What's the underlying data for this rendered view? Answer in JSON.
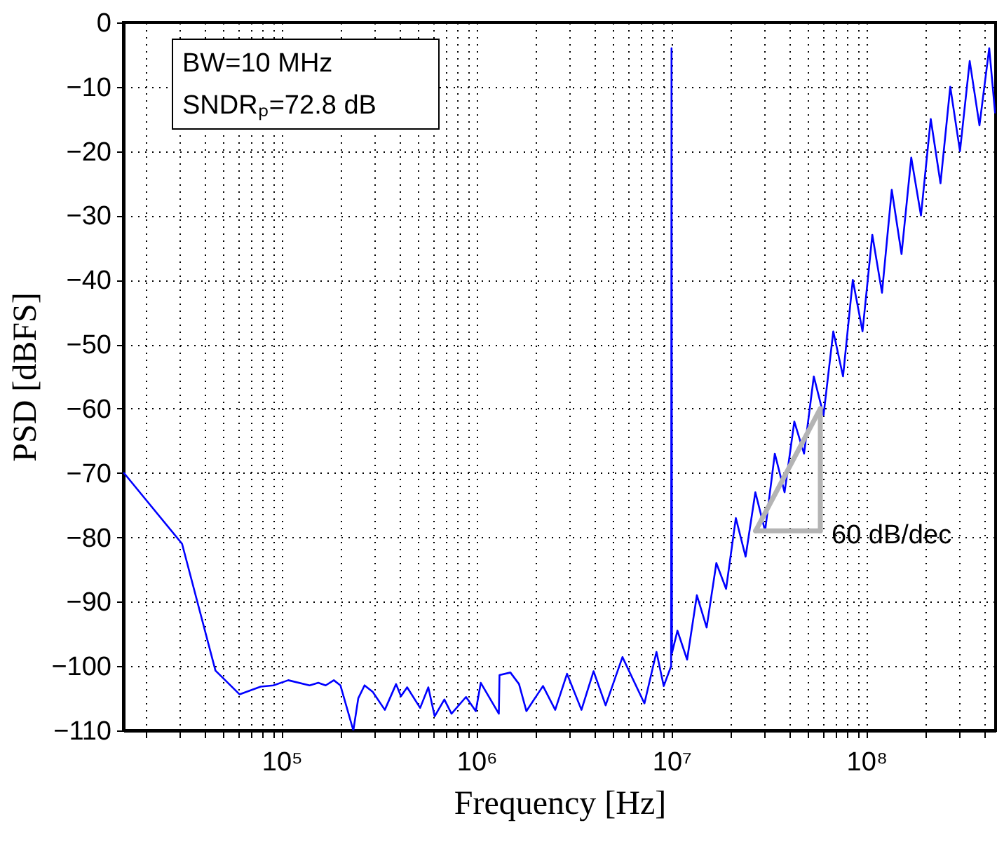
{
  "chart_data": {
    "type": "line",
    "xlabel": "Frequency [Hz]",
    "ylabel": "PSD [dBFS]",
    "log": "x",
    "grid": true,
    "line_style": "solid",
    "xlim": [
      15400,
      460000000
    ],
    "ylim": [
      -110,
      0
    ],
    "yticks": [
      0,
      -10,
      -20,
      -30,
      -40,
      -50,
      -60,
      -70,
      -80,
      -90,
      -100,
      -110
    ],
    "xticks": [
      {
        "value": 20000,
        "label": null
      },
      {
        "value": 30000,
        "label": null
      },
      {
        "value": 40000,
        "label": null
      },
      {
        "value": 50000,
        "label": null
      },
      {
        "value": 60000,
        "label": null
      },
      {
        "value": 70000,
        "label": null
      },
      {
        "value": 80000,
        "label": null
      },
      {
        "value": 90000,
        "label": null
      },
      {
        "value": 100000,
        "label": "10⁵"
      },
      {
        "value": 200000,
        "label": null
      },
      {
        "value": 300000,
        "label": null
      },
      {
        "value": 400000,
        "label": null
      },
      {
        "value": 500000,
        "label": null
      },
      {
        "value": 600000,
        "label": null
      },
      {
        "value": 700000,
        "label": null
      },
      {
        "value": 800000,
        "label": null
      },
      {
        "value": 900000,
        "label": null
      },
      {
        "value": 1000000,
        "label": "10⁶"
      },
      {
        "value": 2000000,
        "label": null
      },
      {
        "value": 3000000,
        "label": null
      },
      {
        "value": 4000000,
        "label": null
      },
      {
        "value": 5000000,
        "label": null
      },
      {
        "value": 6000000,
        "label": null
      },
      {
        "value": 7000000,
        "label": null
      },
      {
        "value": 8000000,
        "label": null
      },
      {
        "value": 9000000,
        "label": null
      },
      {
        "value": 10000000,
        "label": "10⁷"
      },
      {
        "value": 20000000,
        "label": null
      },
      {
        "value": 30000000,
        "label": null
      },
      {
        "value": 40000000,
        "label": null
      },
      {
        "value": 50000000,
        "label": null
      },
      {
        "value": 60000000,
        "label": null
      },
      {
        "value": 70000000,
        "label": null
      },
      {
        "value": 80000000,
        "label": null
      },
      {
        "value": 90000000,
        "label": null
      },
      {
        "value": 100000000,
        "label": "10⁸"
      },
      {
        "value": 200000000,
        "label": null
      },
      {
        "value": 300000000,
        "label": null
      },
      {
        "value": 400000000,
        "label": null
      }
    ],
    "annotations": [
      "BW=10 MHz",
      "SNDRₚ=72.8 dB",
      "60 dB/dec"
    ],
    "series": [
      {
        "color": "#0000ff",
        "x": [
          15500,
          30800,
          45700,
          60800,
          78000,
          90600,
          108000,
          139000,
          154000,
          168000,
          185000,
          200000,
          233000,
          247000,
          266000,
          293000,
          338000,
          386000,
          409000,
          440000,
          513000,
          565000,
          609000,
          683000,
          743000,
          882000,
          990000,
          1050000,
          1300000,
          1310000,
          1490000,
          1650000,
          1800000,
          2190000,
          2530000,
          2910000,
          3450000,
          3980000,
          4590000,
          5600000,
          7260000,
          8370000,
          9120000,
          9950000,
          10000000,
          10050000,
          10720000,
          12020000,
          13490000,
          15140000,
          16980000,
          19050000,
          21380000,
          23990000,
          26920000,
          30200000,
          33880000,
          38020000,
          42660000,
          47860000,
          53700000,
          60260000,
          67610000,
          75860000,
          85110000,
          95500000,
          107200000,
          120200000,
          134900000,
          151400000,
          169800000,
          190500000,
          213800000,
          239900000,
          269200000,
          302000000,
          338800000,
          380200000,
          426600000,
          457100000
        ],
        "values": [
          -70,
          -81,
          -100.7,
          -104.4,
          -103.2,
          -103,
          -102.2,
          -103,
          -102.6,
          -103,
          -102.2,
          -103,
          -110,
          -105,
          -103,
          -104,
          -106.8,
          -102.8,
          -104.7,
          -103.3,
          -106.5,
          -103.3,
          -107.8,
          -105.2,
          -107.4,
          -104.8,
          -107,
          -102.6,
          -107.4,
          -101.4,
          -101,
          -102.8,
          -107,
          -103.1,
          -106.8,
          -101.2,
          -106.8,
          -100.8,
          -106.1,
          -98.6,
          -105.8,
          -97.8,
          -103.1,
          -100,
          -4,
          -98,
          -94.5,
          -99,
          -89,
          -94,
          -84,
          -88,
          -77,
          -83,
          -73,
          -79,
          -67,
          -73,
          -62,
          -67,
          -55,
          -61,
          -48,
          -55,
          -40,
          -48,
          -33,
          -42,
          -26,
          -36,
          -21,
          -30,
          -15,
          -25,
          -10,
          -20,
          -6,
          -16,
          -4,
          -14
        ]
      },
      {
        "color": "#b4b4b4",
        "x": [
          27000000,
          58000000
        ],
        "values": [
          -79,
          -60
        ]
      },
      {
        "color": "#b4b4b4",
        "x": [
          27000000,
          58000000
        ],
        "values": [
          -79,
          -79
        ]
      },
      {
        "color": "#b4b4b4",
        "x": [
          58000000,
          58000000
        ],
        "values": [
          -79,
          -60
        ]
      }
    ]
  }
}
